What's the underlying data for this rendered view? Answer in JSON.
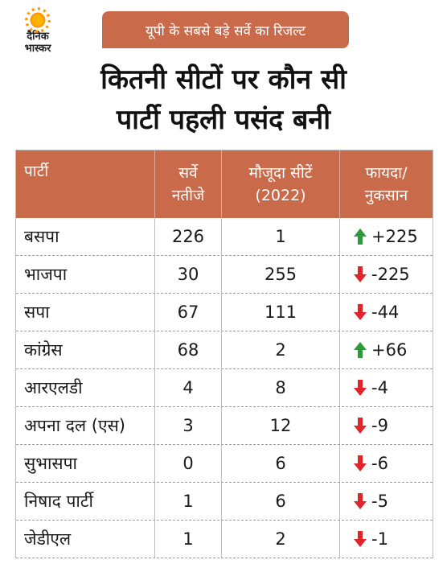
{
  "logo": {
    "line1": "दैनिक",
    "line2": "भास्कर"
  },
  "banner": "यूपी के सबसे बड़े सर्वे का रिजल्ट",
  "title": {
    "line1": "कितनी सीटों पर कौन सी",
    "line2": "पार्टी पहली पसंद बनी"
  },
  "table": {
    "headers": {
      "party": "पार्टी",
      "survey_1": "सर्वे",
      "survey_2": "नतीजे",
      "current_1": "मौजूदा सीटें",
      "current_2": "(2022)",
      "change_1": "फायदा/",
      "change_2": "नुकसान"
    },
    "rows": [
      {
        "party": "बसपा",
        "survey": "226",
        "current": "1",
        "change": "+225",
        "trend": "up"
      },
      {
        "party": "भाजपा",
        "survey": "30",
        "current": "255",
        "change": "-225",
        "trend": "down"
      },
      {
        "party": "सपा",
        "survey": "67",
        "current": "111",
        "change": "-44",
        "trend": "down"
      },
      {
        "party": "कांग्रेस",
        "survey": "68",
        "current": "2",
        "change": "+66",
        "trend": "up"
      },
      {
        "party": "आरएलडी",
        "survey": "4",
        "current": "8",
        "change": "-4",
        "trend": "down"
      },
      {
        "party": "अपना दल (एस)",
        "survey": "3",
        "current": "12",
        "change": "-9",
        "trend": "down"
      },
      {
        "party": "सुभासपा",
        "survey": "0",
        "current": "6",
        "change": "-6",
        "trend": "down"
      },
      {
        "party": "निषाद पार्टी",
        "survey": "1",
        "current": "6",
        "change": "-5",
        "trend": "down"
      },
      {
        "party": "जेडीएल",
        "survey": "1",
        "current": "2",
        "change": "-1",
        "trend": "down"
      }
    ]
  },
  "colors": {
    "accent": "#c96a4a",
    "up": "#2e9b3a",
    "down": "#e0262b"
  }
}
